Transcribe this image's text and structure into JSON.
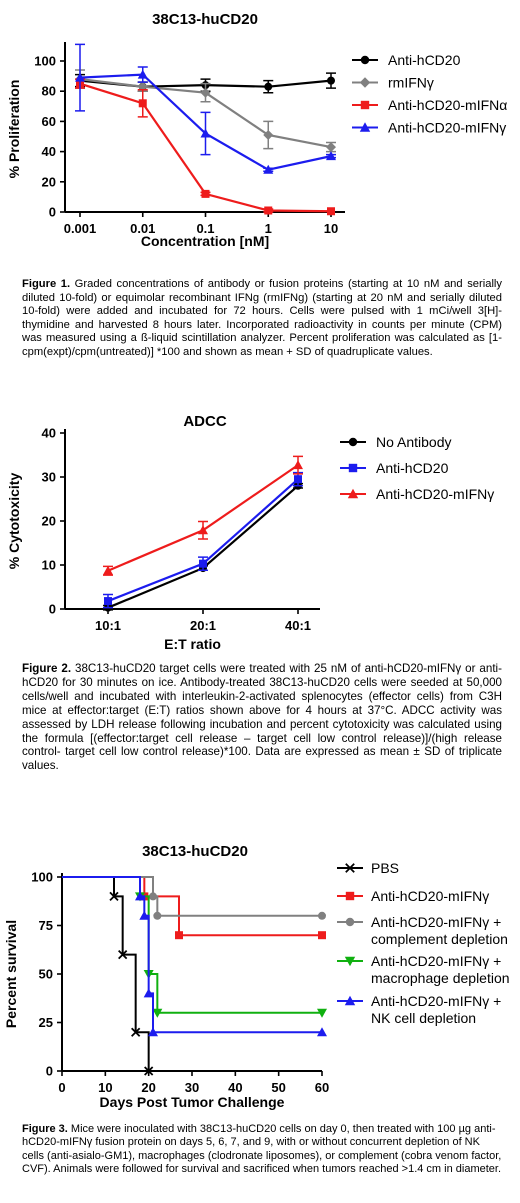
{
  "figures": [
    {
      "caption_label": "Figure 1.",
      "caption_text": "Graded concentrations of antibody or fusion proteins (starting at 10 nM and serially diluted 10-fold) or equimolar recombinant IFNg (rmIFNg) (starting at 20 nM and serially diluted 10-fold) were added and incubated for 72 hours.  Cells were pulsed with 1 mCi/well 3[H]-thymidine and harvested 8 hours later.  Incorporated radioactivity in counts per minute (CPM) was measured using a ß-liquid scintillation analyzer.  Percent proliferation was calculated as [1-cpm(expt)/cpm(untreated)] *100 and shown as mean + SD of quadruplicate values."
    },
    {
      "caption_label": "Figure 2.",
      "caption_text": "38C13-huCD20 target cells were treated with 25 nM of anti-hCD20-mIFNγ or anti-hCD20 for 30 minutes on ice. Antibody-treated 38C13-huCD20 cells were seeded at 50,000 cells/well and incubated with interleukin-2-activated splenocytes (effector cells) from C3H mice at effector:target (E:T) ratios shown above for 4 hours at 37°C. ADCC activity was assessed by LDH release following incubation and percent cytotoxicity was calculated using the formula [(effector:target cell release – target cell low control release)]/(high release control- target cell low control release)*100. Data are expressed as mean ± SD of triplicate values."
    },
    {
      "caption_label": "Figure 3.",
      "caption_text": "Mice were inoculated with 38C13-huCD20 cells on day 0, then treated with 100 µg anti-hCD20-mIFNγ fusion protein on days 5, 6, 7, and 9, with or without concurrent depletion of NK cells (anti-asialo-GM1), macrophages (clodronate liposomes), or complement (cobra venom factor, CVF). Animals were followed for survival and sacrificed when tumors reached >1.4 cm in diameter."
    }
  ],
  "chart_data": [
    {
      "type": "line",
      "title": "38C13-huCD20",
      "xlabel": "Concentration [nM]",
      "ylabel": "% Proliferation",
      "x_scale": "log",
      "x": [
        0.001,
        0.01,
        0.1,
        1,
        10
      ],
      "x_tick_labels": [
        "0.001",
        "0.01",
        "0.1",
        "1",
        "10"
      ],
      "ylim": [
        0,
        100
      ],
      "y_ticks": [
        0,
        20,
        40,
        60,
        80,
        100
      ],
      "grid": false,
      "legend_position": "right",
      "series": [
        {
          "name": "Anti-hCD20",
          "color": "#000000",
          "marker": "circle",
          "values": [
            87,
            83,
            84,
            83,
            87
          ],
          "error": [
            4,
            3,
            4,
            4,
            5
          ]
        },
        {
          "name": "rmIFNγ",
          "color": "#808080",
          "marker": "diamond",
          "values": [
            88,
            83,
            79,
            51,
            43
          ],
          "error": [
            6,
            3,
            6,
            9,
            3
          ]
        },
        {
          "name": "Anti-hCD20-mIFNα",
          "color": "#ee1c1c",
          "marker": "square",
          "values": [
            85,
            72,
            12,
            1,
            0.5
          ],
          "error": [
            3,
            9,
            1,
            1,
            0.5
          ]
        },
        {
          "name": "Anti-hCD20-mIFNγ",
          "color": "#1c1cee",
          "marker": "triangle",
          "values": [
            89,
            91,
            52,
            28,
            37
          ],
          "error": [
            22,
            5,
            14,
            1,
            1
          ]
        }
      ]
    },
    {
      "type": "line",
      "title": "ADCC",
      "xlabel": "E:T ratio",
      "ylabel": "% Cytotoxicity",
      "categories": [
        "10:1",
        "20:1",
        "40:1"
      ],
      "ylim": [
        0,
        40
      ],
      "y_ticks": [
        0,
        10,
        20,
        30,
        40
      ],
      "grid": false,
      "legend_position": "right",
      "series": [
        {
          "name": "No Antibody",
          "color": "#000000",
          "marker": "circle",
          "values": [
            0.3,
            9.3,
            28
          ],
          "error": [
            0.5,
            0.5,
            0.5
          ]
        },
        {
          "name": "Anti-hCD20",
          "color": "#1c1cee",
          "marker": "square",
          "values": [
            1.8,
            10.3,
            29.5
          ],
          "error": [
            1.5,
            1.5,
            1.5
          ]
        },
        {
          "name": "Anti-hCD20-mIFNγ",
          "color": "#ee1c1c",
          "marker": "triangle",
          "values": [
            8.7,
            17.9,
            32.7
          ],
          "error": [
            1,
            2,
            2
          ]
        }
      ]
    },
    {
      "type": "line",
      "step": true,
      "title": "38C13-huCD20",
      "xlabel": "Days Post Tumor Challenge",
      "ylabel": "Percent survival",
      "xlim": [
        0,
        60
      ],
      "x_ticks": [
        0,
        10,
        20,
        30,
        40,
        50,
        60
      ],
      "ylim": [
        0,
        100
      ],
      "y_ticks": [
        0,
        25,
        50,
        75,
        100
      ],
      "grid": false,
      "legend_position": "right",
      "series": [
        {
          "name": "PBS",
          "color": "#000000",
          "marker": "cross",
          "x": [
            0,
            12,
            14,
            17,
            20
          ],
          "values": [
            100,
            90,
            60,
            20,
            0
          ]
        },
        {
          "name": "Anti-hCD20-mIFNγ",
          "color": "#ee1c1c",
          "marker": "square",
          "x": [
            0,
            19,
            27,
            60
          ],
          "values": [
            100,
            90,
            70,
            70
          ]
        },
        {
          "name": "Anti-hCD20-mIFNγ + complement depletion",
          "color": "#808080",
          "marker": "circle",
          "x": [
            0,
            21,
            22,
            60
          ],
          "values": [
            100,
            90,
            80,
            80
          ]
        },
        {
          "name": "Anti-hCD20-mIFNγ + macrophage depletion",
          "color": "#10b010",
          "marker": "triangle-down",
          "x": [
            0,
            18,
            20,
            22,
            60
          ],
          "values": [
            100,
            90,
            50,
            30,
            30
          ]
        },
        {
          "name": "Anti-hCD20-mIFNγ + NK cell depletion",
          "color": "#1c1cee",
          "marker": "triangle",
          "x": [
            0,
            18,
            19,
            20,
            21,
            60
          ],
          "values": [
            100,
            90,
            80,
            40,
            20,
            20
          ]
        }
      ]
    }
  ]
}
